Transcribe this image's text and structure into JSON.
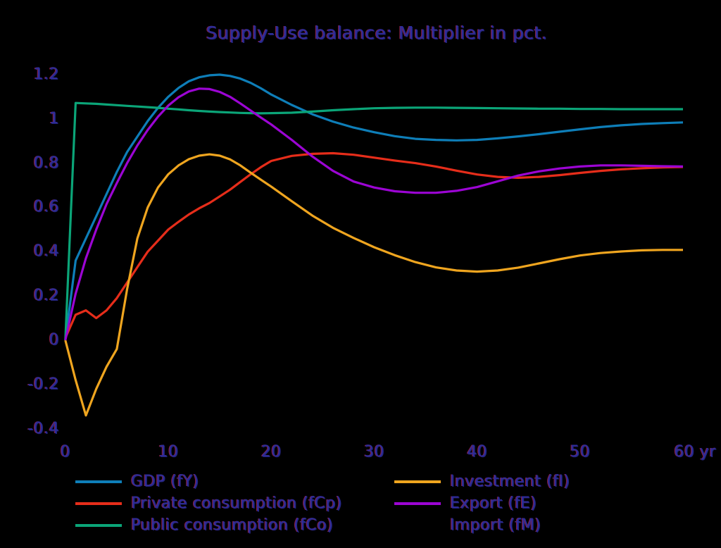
{
  "page": {
    "background_color": "#000000",
    "text_core_color": "#2d2d9a",
    "text_fringe_left_color": "#8c1f41",
    "text_fringe_right_color": "#23237a"
  },
  "chart_data": {
    "type": "line",
    "title": "Supply-Use balance: Multiplier in pct.",
    "xlabel": "yr",
    "ylabel": "",
    "grid": false,
    "xlim": [
      0,
      60.6
    ],
    "ylim": [
      -0.45,
      1.27
    ],
    "x_ticks": [
      0,
      10,
      20,
      30,
      40,
      50,
      60
    ],
    "x_tick_labels": [
      "0",
      "10",
      "20",
      "30",
      "40",
      "50",
      "60 yr"
    ],
    "y_ticks": [
      1.2,
      1,
      0.8,
      0.6,
      0.4,
      0.2,
      0,
      -0.2,
      -0.4
    ],
    "y_tick_labels": [
      "1.2",
      "1",
      "0.8",
      "0.6",
      "0.4",
      "0.2",
      "0",
      "-0.2",
      "-0.4"
    ],
    "legend_position": "below-plot, two columns",
    "series": [
      {
        "name": "GDP (fY)",
        "slug": "gdp",
        "color": "#0e7eb8",
        "points": [
          [
            0,
            0
          ],
          [
            1,
            0.36
          ],
          [
            2,
            0.46
          ],
          [
            3,
            0.56
          ],
          [
            4,
            0.66
          ],
          [
            5,
            0.76
          ],
          [
            6,
            0.85
          ],
          [
            7,
            0.92
          ],
          [
            8,
            0.99
          ],
          [
            9,
            1.05
          ],
          [
            10,
            1.1
          ],
          [
            11,
            1.14
          ],
          [
            12,
            1.17
          ],
          [
            13,
            1.188
          ],
          [
            14,
            1.197
          ],
          [
            15,
            1.2
          ],
          [
            16,
            1.194
          ],
          [
            17,
            1.182
          ],
          [
            18,
            1.163
          ],
          [
            19,
            1.138
          ],
          [
            20,
            1.11
          ],
          [
            22,
            1.063
          ],
          [
            24,
            1.021
          ],
          [
            26,
            0.988
          ],
          [
            28,
            0.961
          ],
          [
            30,
            0.94
          ],
          [
            32,
            0.922
          ],
          [
            34,
            0.91
          ],
          [
            36,
            0.905
          ],
          [
            38,
            0.903
          ],
          [
            40,
            0.905
          ],
          [
            42,
            0.912
          ],
          [
            44,
            0.921
          ],
          [
            46,
            0.931
          ],
          [
            48,
            0.942
          ],
          [
            50,
            0.953
          ],
          [
            52,
            0.963
          ],
          [
            54,
            0.971
          ],
          [
            56,
            0.977
          ],
          [
            58,
            0.981
          ],
          [
            60,
            0.984
          ]
        ]
      },
      {
        "name": "Private consumption (fCp)",
        "slug": "private-consumption",
        "color": "#e62d1a",
        "points": [
          [
            0,
            0.01
          ],
          [
            1,
            0.115
          ],
          [
            2,
            0.135
          ],
          [
            3,
            0.1
          ],
          [
            4,
            0.135
          ],
          [
            5,
            0.19
          ],
          [
            6,
            0.26
          ],
          [
            7,
            0.33
          ],
          [
            8,
            0.4
          ],
          [
            9,
            0.45
          ],
          [
            10,
            0.5
          ],
          [
            11,
            0.535
          ],
          [
            12,
            0.568
          ],
          [
            13,
            0.596
          ],
          [
            14,
            0.62
          ],
          [
            15,
            0.65
          ],
          [
            16,
            0.68
          ],
          [
            17,
            0.715
          ],
          [
            18,
            0.75
          ],
          [
            19,
            0.782
          ],
          [
            20,
            0.81
          ],
          [
            22,
            0.833
          ],
          [
            24,
            0.842
          ],
          [
            26,
            0.845
          ],
          [
            28,
            0.838
          ],
          [
            30,
            0.825
          ],
          [
            32,
            0.812
          ],
          [
            34,
            0.8
          ],
          [
            36,
            0.785
          ],
          [
            38,
            0.766
          ],
          [
            40,
            0.749
          ],
          [
            42,
            0.738
          ],
          [
            44,
            0.734
          ],
          [
            46,
            0.738
          ],
          [
            48,
            0.746
          ],
          [
            50,
            0.756
          ],
          [
            52,
            0.765
          ],
          [
            54,
            0.772
          ],
          [
            56,
            0.777
          ],
          [
            58,
            0.781
          ],
          [
            60,
            0.783
          ]
        ]
      },
      {
        "name": "Public consumption (fCo)",
        "slug": "public-consumption",
        "color": "#0ba578",
        "points": [
          [
            0,
            0
          ],
          [
            1,
            1.072
          ],
          [
            2,
            1.07
          ],
          [
            3,
            1.068
          ],
          [
            4,
            1.065
          ],
          [
            5,
            1.062
          ],
          [
            6,
            1.059
          ],
          [
            7,
            1.056
          ],
          [
            8,
            1.053
          ],
          [
            9,
            1.05
          ],
          [
            10,
            1.046
          ],
          [
            11,
            1.043
          ],
          [
            12,
            1.039
          ],
          [
            13,
            1.036
          ],
          [
            14,
            1.033
          ],
          [
            15,
            1.031
          ],
          [
            16,
            1.029
          ],
          [
            17,
            1.027
          ],
          [
            18,
            1.026
          ],
          [
            19,
            1.025
          ],
          [
            20,
            1.026
          ],
          [
            22,
            1.028
          ],
          [
            24,
            1.033
          ],
          [
            26,
            1.039
          ],
          [
            28,
            1.044
          ],
          [
            30,
            1.048
          ],
          [
            32,
            1.05
          ],
          [
            34,
            1.051
          ],
          [
            36,
            1.051
          ],
          [
            38,
            1.05
          ],
          [
            40,
            1.049
          ],
          [
            42,
            1.048
          ],
          [
            44,
            1.047
          ],
          [
            46,
            1.046
          ],
          [
            48,
            1.046
          ],
          [
            50,
            1.045
          ],
          [
            52,
            1.045
          ],
          [
            54,
            1.044
          ],
          [
            56,
            1.044
          ],
          [
            58,
            1.044
          ],
          [
            60,
            1.044
          ]
        ]
      },
      {
        "name": "Investment (fI)",
        "slug": "investment",
        "color": "#efa51f",
        "points": [
          [
            0,
            0
          ],
          [
            1,
            -0.18
          ],
          [
            2,
            -0.34
          ],
          [
            3,
            -0.22
          ],
          [
            4,
            -0.12
          ],
          [
            5,
            -0.04
          ],
          [
            6,
            0.23
          ],
          [
            7,
            0.46
          ],
          [
            8,
            0.6
          ],
          [
            9,
            0.69
          ],
          [
            10,
            0.75
          ],
          [
            11,
            0.79
          ],
          [
            12,
            0.818
          ],
          [
            13,
            0.834
          ],
          [
            14,
            0.84
          ],
          [
            15,
            0.834
          ],
          [
            16,
            0.817
          ],
          [
            17,
            0.79
          ],
          [
            18,
            0.757
          ],
          [
            19,
            0.725
          ],
          [
            20,
            0.694
          ],
          [
            22,
            0.628
          ],
          [
            24,
            0.563
          ],
          [
            26,
            0.508
          ],
          [
            28,
            0.462
          ],
          [
            30,
            0.42
          ],
          [
            32,
            0.384
          ],
          [
            34,
            0.353
          ],
          [
            36,
            0.329
          ],
          [
            38,
            0.315
          ],
          [
            40,
            0.31
          ],
          [
            42,
            0.315
          ],
          [
            44,
            0.328
          ],
          [
            46,
            0.347
          ],
          [
            48,
            0.366
          ],
          [
            50,
            0.383
          ],
          [
            52,
            0.394
          ],
          [
            54,
            0.401
          ],
          [
            56,
            0.406
          ],
          [
            58,
            0.408
          ],
          [
            60,
            0.408
          ]
        ]
      },
      {
        "name": "Export (fE)",
        "slug": "export",
        "color": "#9c05d4",
        "points": [
          [
            0,
            0
          ],
          [
            1,
            0.21
          ],
          [
            2,
            0.37
          ],
          [
            3,
            0.5
          ],
          [
            4,
            0.615
          ],
          [
            5,
            0.71
          ],
          [
            6,
            0.8
          ],
          [
            7,
            0.88
          ],
          [
            8,
            0.95
          ],
          [
            9,
            1.01
          ],
          [
            10,
            1.06
          ],
          [
            11,
            1.098
          ],
          [
            12,
            1.124
          ],
          [
            13,
            1.137
          ],
          [
            14,
            1.135
          ],
          [
            15,
            1.122
          ],
          [
            16,
            1.1
          ],
          [
            17,
            1.07
          ],
          [
            18,
            1.038
          ],
          [
            19,
            1.006
          ],
          [
            20,
            0.975
          ],
          [
            22,
            0.905
          ],
          [
            24,
            0.83
          ],
          [
            26,
            0.765
          ],
          [
            28,
            0.717
          ],
          [
            30,
            0.69
          ],
          [
            32,
            0.673
          ],
          [
            34,
            0.666
          ],
          [
            36,
            0.666
          ],
          [
            38,
            0.675
          ],
          [
            40,
            0.692
          ],
          [
            42,
            0.718
          ],
          [
            44,
            0.744
          ],
          [
            46,
            0.763
          ],
          [
            48,
            0.776
          ],
          [
            50,
            0.785
          ],
          [
            52,
            0.79
          ],
          [
            54,
            0.79
          ],
          [
            56,
            0.788
          ],
          [
            58,
            0.786
          ],
          [
            60,
            0.785
          ]
        ]
      },
      {
        "name": "Import (fM)",
        "slug": "import",
        "color": "#000000",
        "points": []
      }
    ],
    "legend": {
      "columns": [
        [
          0,
          1,
          2
        ],
        [
          3,
          4,
          5
        ]
      ]
    }
  }
}
